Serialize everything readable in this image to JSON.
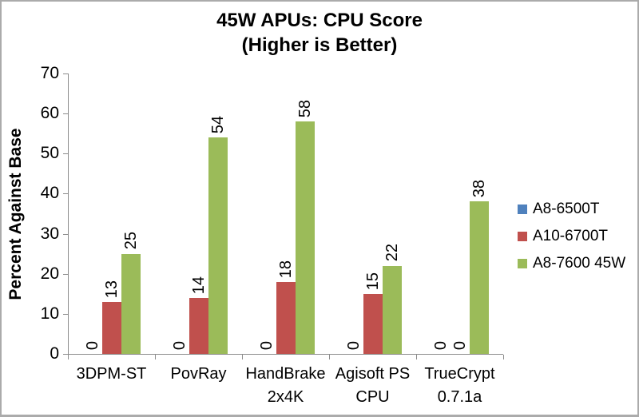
{
  "chart_data": {
    "type": "bar",
    "title_lines": [
      "45W APUs: CPU Score",
      "(Higher is Better)"
    ],
    "ylabel": "Percent Against Base",
    "xlabel": "",
    "ylim": [
      0,
      70
    ],
    "yticks": [
      0,
      10,
      20,
      30,
      40,
      50,
      60,
      70
    ],
    "grid": false,
    "legend_position": "right",
    "data_labels": "rotated-vertical",
    "categories": [
      "3DPM-ST",
      "PovRay",
      "HandBrake 2x4K",
      "Agisoft PS CPU",
      "TrueCrypt 0.7.1a"
    ],
    "category_label_lines": [
      [
        "3DPM-ST"
      ],
      [
        "PovRay"
      ],
      [
        "HandBrake",
        "2x4K"
      ],
      [
        "Agisoft PS",
        "CPU"
      ],
      [
        "TrueCrypt",
        "0.7.1a"
      ]
    ],
    "series": [
      {
        "name": "A8-6500T",
        "color": "#4f81bd",
        "values": [
          0,
          0,
          0,
          0,
          0
        ]
      },
      {
        "name": "A10-6700T",
        "color": "#c0504d",
        "values": [
          13,
          14,
          18,
          15,
          0
        ]
      },
      {
        "name": "A8-7600 45W",
        "color": "#9bbb59",
        "values": [
          25,
          54,
          58,
          22,
          38
        ]
      }
    ],
    "colors": {
      "axis_line": "#8c8c8c",
      "frame_border": "#ababab",
      "text": "#000000",
      "background": "#ffffff"
    }
  }
}
